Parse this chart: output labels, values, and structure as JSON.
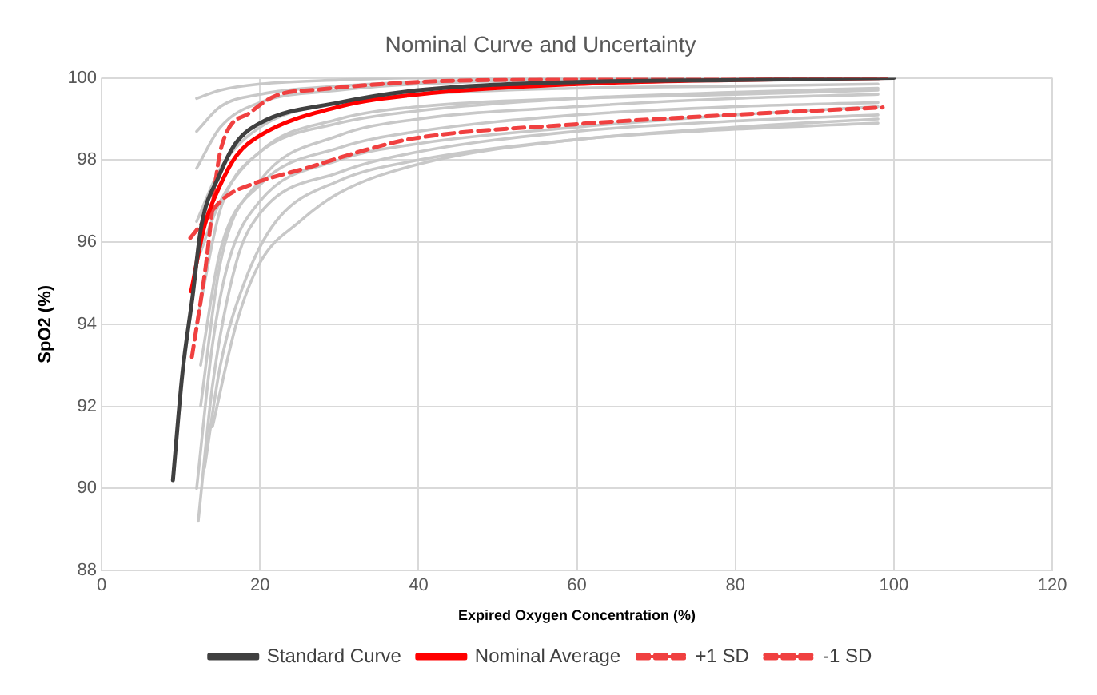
{
  "chart_data": {
    "type": "line",
    "title": "Nominal Curve and Uncertainty",
    "xlabel": "Expired Oxygen Concentration (%)",
    "ylabel": "SpO2 (%)",
    "xlim": [
      0,
      120
    ],
    "xticks": [
      0,
      20,
      40,
      60,
      80,
      100,
      120
    ],
    "ylim": [
      88,
      100
    ],
    "yticks": [
      88,
      90,
      92,
      94,
      96,
      98,
      100
    ],
    "grid": true,
    "legend": "bottom",
    "marker": "none",
    "series": [
      {
        "name": "Standard Curve",
        "color": "#404040",
        "line_style": "solid",
        "x": [
          9,
          10.2,
          11.5,
          12.6,
          14.8,
          16.9,
          20,
          30,
          40,
          60,
          80,
          100
        ],
        "values": [
          90.2,
          92.8,
          94.7,
          96.4,
          97.6,
          98.4,
          98.9,
          99.4,
          99.7,
          99.9,
          99.95,
          100
        ]
      },
      {
        "name": "Nominal Average",
        "color": "#ff0000",
        "line_style": "solid",
        "x": [
          11.3,
          13,
          15,
          17,
          20,
          30,
          40,
          60,
          80,
          99
        ],
        "values": [
          94.8,
          96.4,
          97.4,
          98.1,
          98.6,
          99.3,
          99.6,
          99.85,
          99.95,
          100
        ]
      },
      {
        "name": "+1 SD",
        "color": "#f04040",
        "line_style": "dashed",
        "x": [
          11.4,
          13,
          15.1,
          18.7,
          21.9,
          27.6,
          40,
          60,
          80,
          99
        ],
        "values": [
          93.2,
          95.2,
          98.3,
          99.15,
          99.56,
          99.72,
          99.9,
          99.97,
          100,
          100
        ]
      },
      {
        "name": "-1 SD",
        "color": "#f04040",
        "line_style": "dashed",
        "x": [
          11.2,
          15.5,
          19.1,
          26.3,
          33.4,
          39.2,
          59.7,
          79.5,
          98.6
        ],
        "values": [
          96.1,
          97.08,
          97.42,
          97.83,
          98.25,
          98.52,
          98.87,
          99.1,
          99.28
        ]
      },
      {
        "color": "#c8c8c8",
        "line_style": "solid",
        "x": [
          12,
          15,
          20,
          30,
          40,
          60,
          98
        ],
        "values": [
          99.5,
          99.7,
          99.85,
          99.95,
          100,
          100,
          100
        ]
      },
      {
        "color": "#c8c8c8",
        "line_style": "solid",
        "x": [
          12,
          15,
          20,
          30,
          40,
          60,
          98
        ],
        "values": [
          97.8,
          98.8,
          99.4,
          99.7,
          99.85,
          99.95,
          99.95
        ]
      },
      {
        "color": "#c8c8c8",
        "line_style": "solid",
        "x": [
          12,
          15,
          20,
          30,
          40,
          60,
          80,
          98
        ],
        "values": [
          96.5,
          97.8,
          98.8,
          99.4,
          99.6,
          99.75,
          99.8,
          99.85
        ]
      },
      {
        "color": "#c8c8c8",
        "line_style": "solid",
        "x": [
          12,
          15,
          20,
          30,
          40,
          60,
          80,
          98
        ],
        "values": [
          94,
          96.8,
          98.2,
          99,
          99.3,
          99.5,
          99.6,
          99.7
        ]
      },
      {
        "color": "#c8c8c8",
        "line_style": "solid",
        "x": [
          12.5,
          15,
          20,
          30,
          40,
          60,
          80,
          98
        ],
        "values": [
          92,
          95.5,
          97.5,
          98.6,
          99,
          99.3,
          99.5,
          99.6
        ]
      },
      {
        "color": "#c8c8c8",
        "line_style": "solid",
        "x": [
          12,
          14,
          16,
          20,
          30,
          40,
          60,
          80,
          98
        ],
        "values": [
          90,
          93.5,
          95.5,
          97,
          98,
          98.4,
          98.8,
          99.1,
          99.3
        ]
      },
      {
        "color": "#c8c8c8",
        "line_style": "solid",
        "x": [
          12.2,
          14,
          17,
          20,
          30,
          40,
          60,
          80,
          98
        ],
        "values": [
          89.2,
          92.5,
          95.5,
          96.7,
          97.7,
          98.2,
          98.7,
          98.95,
          99.1
        ]
      },
      {
        "color": "#c8c8c8",
        "line_style": "solid",
        "x": [
          13,
          15,
          18,
          22,
          30,
          40,
          60,
          80,
          98
        ],
        "values": [
          90.5,
          93,
          95,
          96.5,
          97.5,
          98,
          98.5,
          98.8,
          99
        ]
      },
      {
        "color": "#c8c8c8",
        "line_style": "solid",
        "x": [
          14,
          17,
          20,
          25,
          30,
          40,
          60,
          80,
          98
        ],
        "values": [
          91.5,
          94,
          95.5,
          96.5,
          97.2,
          97.9,
          98.5,
          98.75,
          98.9
        ]
      },
      {
        "color": "#c8c8c8",
        "line_style": "solid",
        "x": [
          12,
          15,
          20,
          30,
          40,
          60,
          80,
          98
        ],
        "values": [
          95.5,
          97,
          98.2,
          98.9,
          99.2,
          99.5,
          99.65,
          99.75
        ]
      },
      {
        "color": "#c8c8c8",
        "line_style": "solid",
        "x": [
          12,
          15,
          20,
          30,
          40,
          60,
          98
        ],
        "values": [
          98.7,
          99.3,
          99.6,
          99.8,
          99.9,
          99.95,
          100
        ]
      },
      {
        "color": "#c8c8c8",
        "line_style": "solid",
        "x": [
          12.5,
          15,
          20,
          30,
          40,
          60,
          80,
          98
        ],
        "values": [
          93,
          95.8,
          97.4,
          98.3,
          98.7,
          99.1,
          99.3,
          99.4
        ]
      }
    ]
  }
}
